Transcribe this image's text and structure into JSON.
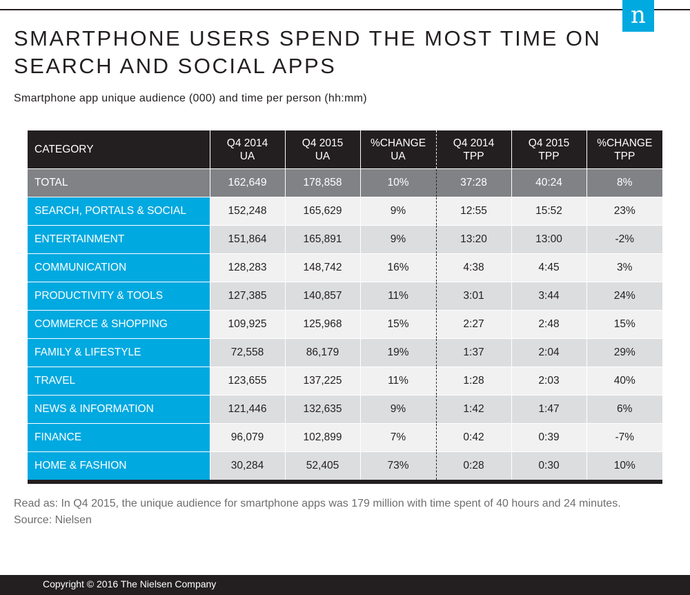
{
  "header": {
    "logo_letter": "n",
    "title": "SMARTPHONE USERS SPEND THE MOST TIME ON SEARCH AND SOCIAL APPS",
    "subtitle": "Smartphone app unique audience (000) and time per person (hh:mm)"
  },
  "chart_data": {
    "type": "table",
    "columns": [
      "CATEGORY",
      "Q4 2014 UA",
      "Q4 2015 UA",
      "%CHANGE UA",
      "Q4 2014 TPP",
      "Q4 2015 TPP",
      "%CHANGE TPP"
    ],
    "header_lines": [
      [
        "CATEGORY",
        ""
      ],
      [
        "Q4 2014",
        "UA"
      ],
      [
        "Q4 2015",
        "UA"
      ],
      [
        "%CHANGE",
        "UA"
      ],
      [
        "Q4 2014",
        "TPP"
      ],
      [
        "Q4 2015",
        "TPP"
      ],
      [
        "%CHANGE",
        "TPP"
      ]
    ],
    "rows": [
      [
        "TOTAL",
        "162,649",
        "178,858",
        "10%",
        "37:28",
        "40:24",
        "8%"
      ],
      [
        "SEARCH, PORTALS & SOCIAL",
        "152,248",
        "165,629",
        "9%",
        "12:55",
        "15:52",
        "23%"
      ],
      [
        "ENTERTAINMENT",
        "151,864",
        "165,891",
        "9%",
        "13:20",
        "13:00",
        "-2%"
      ],
      [
        "COMMUNICATION",
        "128,283",
        "148,742",
        "16%",
        "4:38",
        "4:45",
        "3%"
      ],
      [
        "PRODUCTIVITY & TOOLS",
        "127,385",
        "140,857",
        "11%",
        "3:01",
        "3:44",
        "24%"
      ],
      [
        "COMMERCE & SHOPPING",
        "109,925",
        "125,968",
        "15%",
        "2:27",
        "2:48",
        "15%"
      ],
      [
        "FAMILY & LIFESTYLE",
        "72,558",
        "86,179",
        "19%",
        "1:37",
        "2:04",
        "29%"
      ],
      [
        "TRAVEL",
        "123,655",
        "137,225",
        "11%",
        "1:28",
        "2:03",
        "40%"
      ],
      [
        "NEWS & INFORMATION",
        "121,446",
        "132,635",
        "9%",
        "1:42",
        "1:47",
        "6%"
      ],
      [
        "FINANCE",
        "96,079",
        "102,899",
        "7%",
        "0:42",
        "0:39",
        "-7%"
      ],
      [
        "HOME & FASHION",
        "30,284",
        "52,405",
        "73%",
        "0:28",
        "0:30",
        "10%"
      ]
    ]
  },
  "notes": {
    "read_as": "Read as: In Q4 2015, the unique audience for smartphone apps was 179 million with time spent of 40 hours and 24 minutes.",
    "source": "Source: Nielsen"
  },
  "footer": {
    "copyright": "Copyright © 2016 The Nielsen Company"
  },
  "colors": {
    "accent": "#00a9e0",
    "dark": "#231f20",
    "total_row": "#808285",
    "row_light": "#f1f1f2",
    "row_dark": "#dcdddf"
  }
}
